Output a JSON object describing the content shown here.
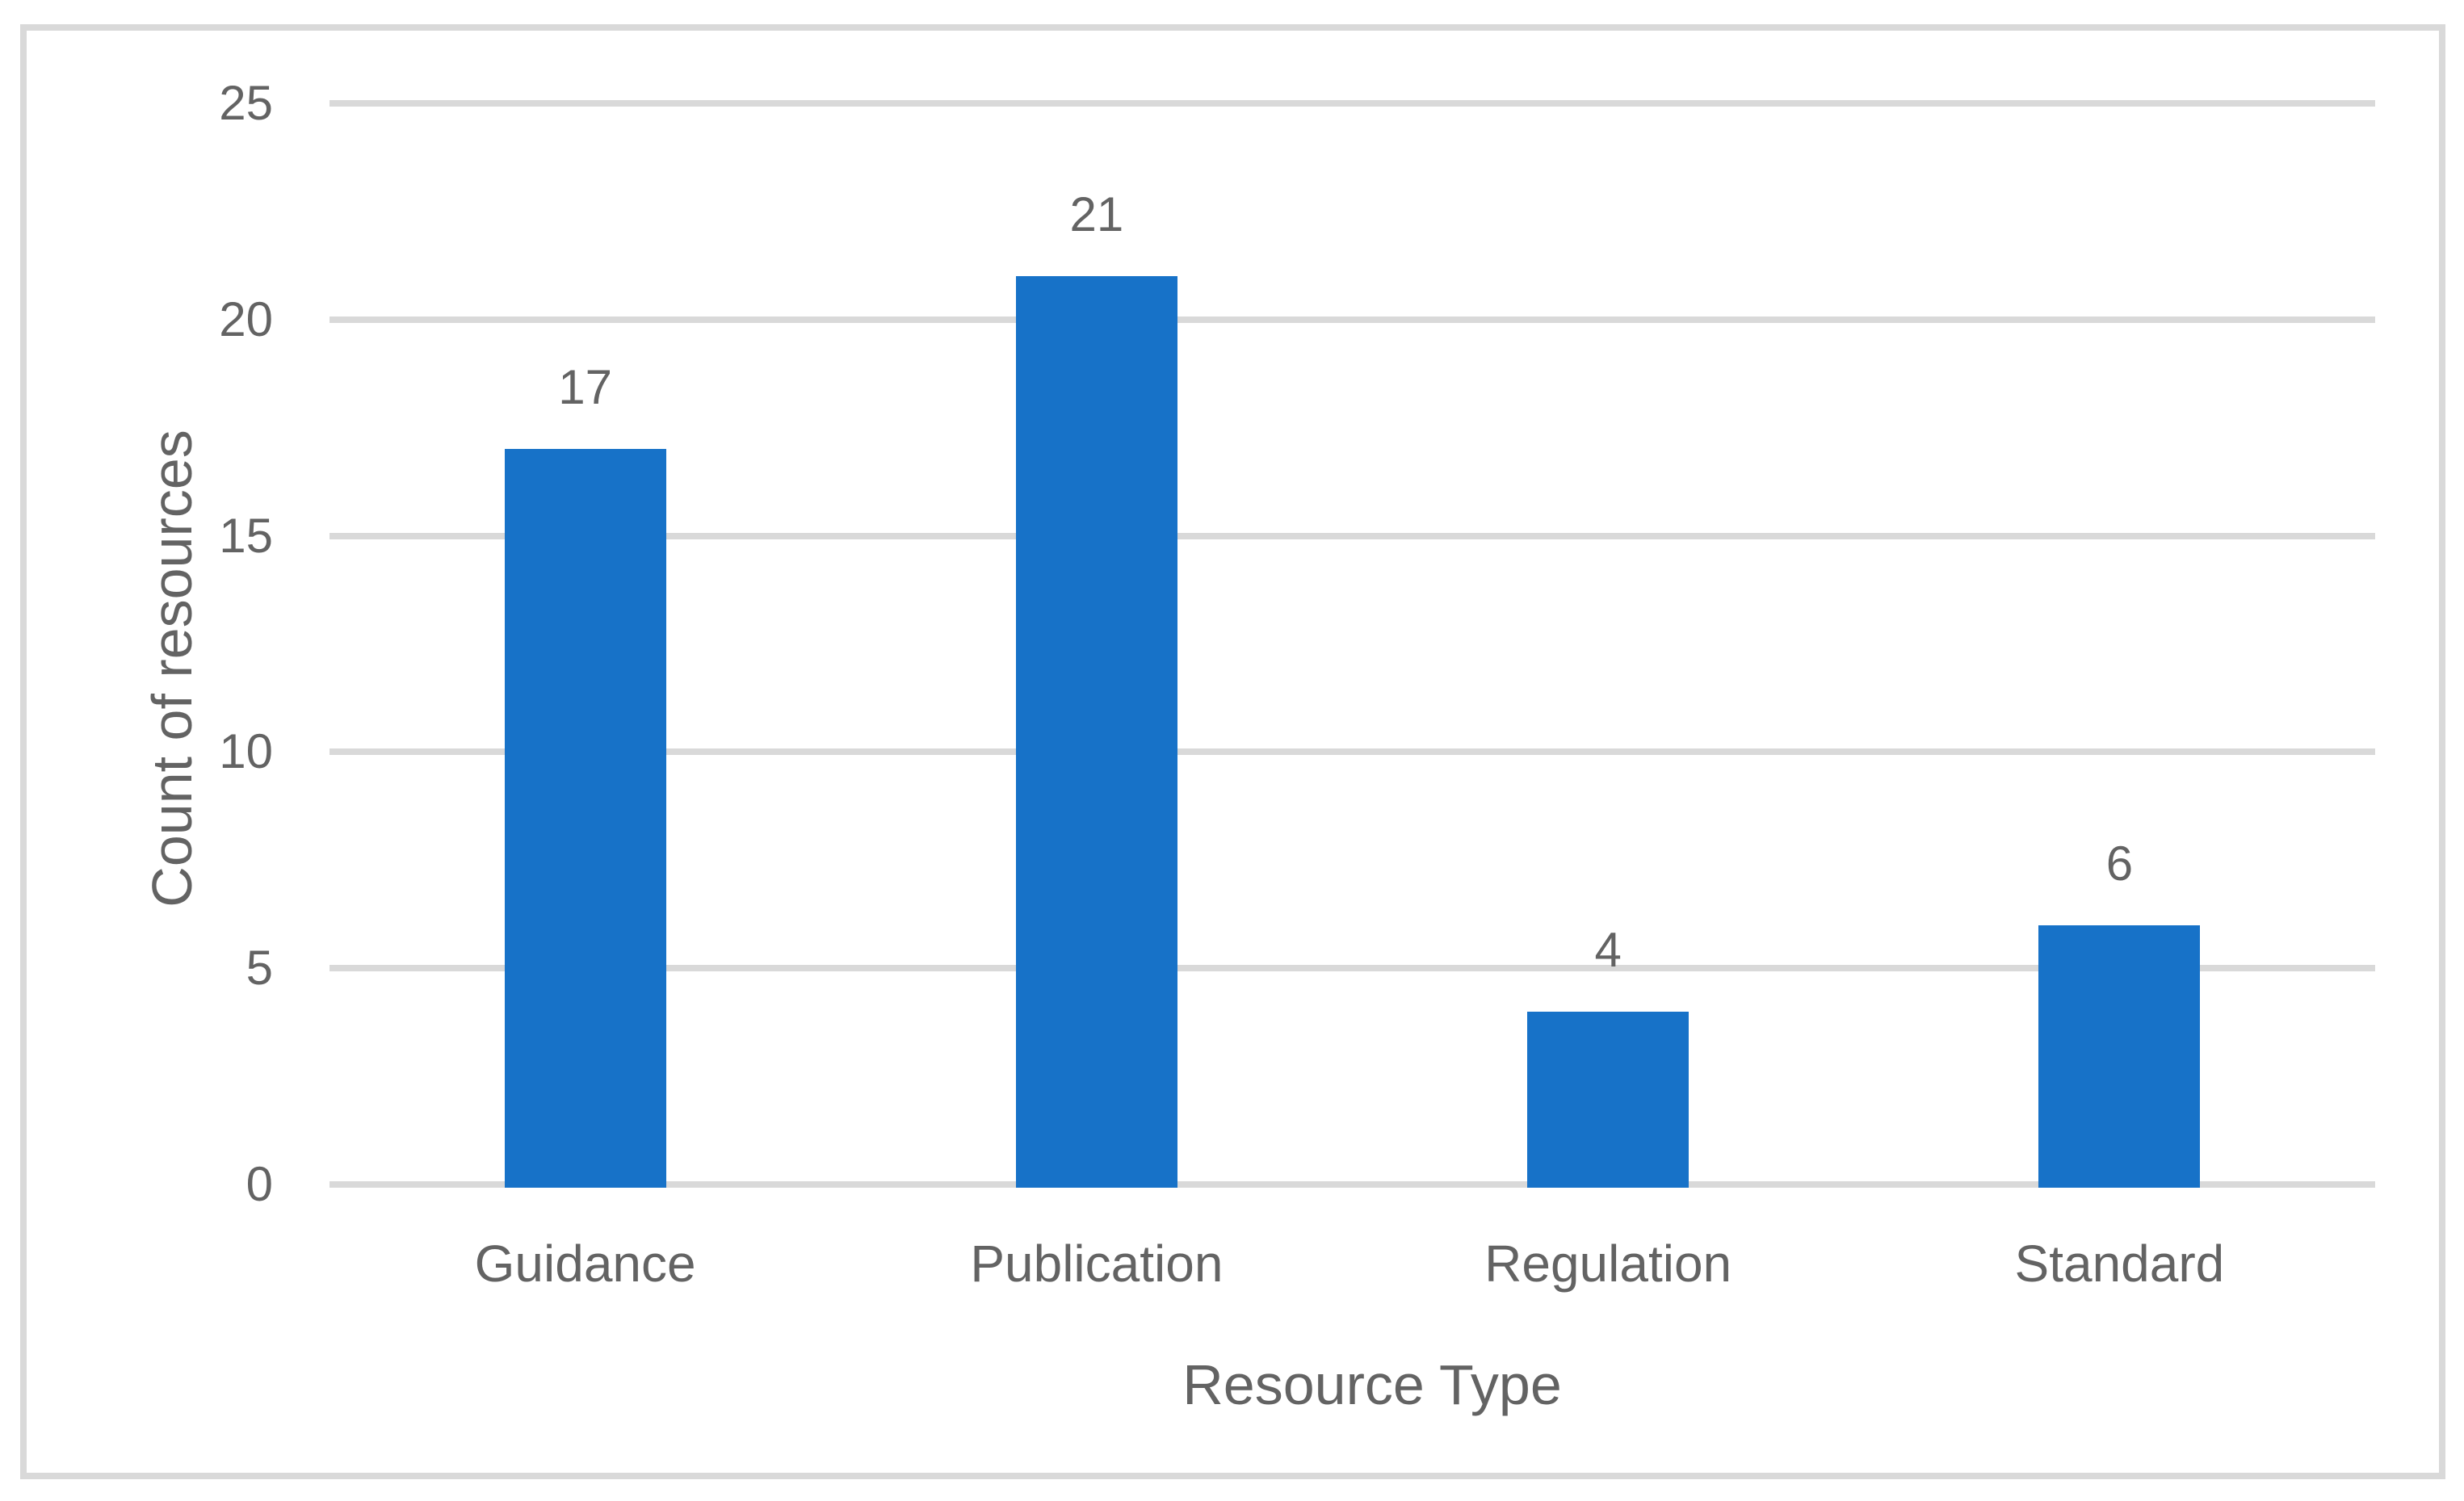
{
  "chart_data": {
    "type": "bar",
    "title": "",
    "categories": [
      "Guidance",
      "Publication",
      "Regulation",
      "Standard"
    ],
    "values": [
      17,
      21,
      4,
      6
    ],
    "data_labels": [
      "17",
      "21",
      "4",
      "6"
    ],
    "xlabel": "Resource Type",
    "ylabel": "Count of resources",
    "ylim": [
      0,
      25
    ],
    "yticks": [
      0,
      5,
      10,
      15,
      20,
      25
    ],
    "grid": true,
    "legend": false,
    "colors": {
      "bar": "#1772c8",
      "gridline": "#d9d9d9",
      "plot_border": "#d9d9d9",
      "text": "#636363",
      "background": "#ffffff"
    }
  }
}
